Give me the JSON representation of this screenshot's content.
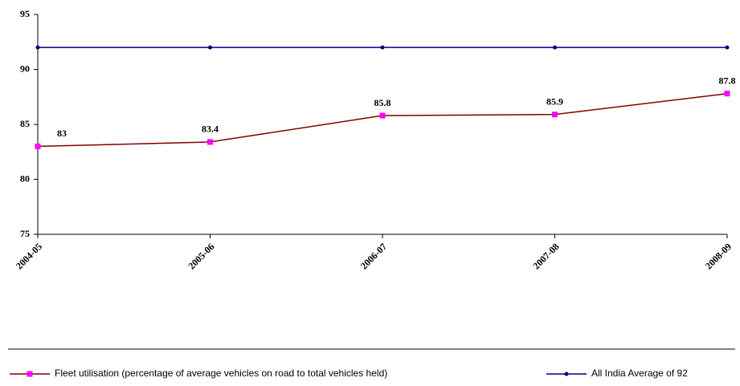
{
  "chart_data": {
    "type": "line",
    "categories": [
      "2004-05",
      "2005-06",
      "2006-07",
      "2007-08",
      "2008-09"
    ],
    "series": [
      {
        "name": "Fleet utilisation (percentage of average vehicles on road to total vehicles held)",
        "color": "#800000",
        "marker_color": "#ff00ff",
        "values": [
          83,
          83.4,
          85.8,
          85.9,
          87.8
        ],
        "value_labels": [
          "83",
          "83.4",
          "85.8",
          "85.9",
          "87.8"
        ]
      },
      {
        "name": "All India Average of 92",
        "color": "#000080",
        "marker_color": "#000080",
        "values": [
          92,
          92,
          92,
          92,
          92
        ]
      }
    ],
    "ylim": [
      75,
      95
    ],
    "yticks": [
      75,
      80,
      85,
      90,
      95
    ],
    "grid": false
  }
}
